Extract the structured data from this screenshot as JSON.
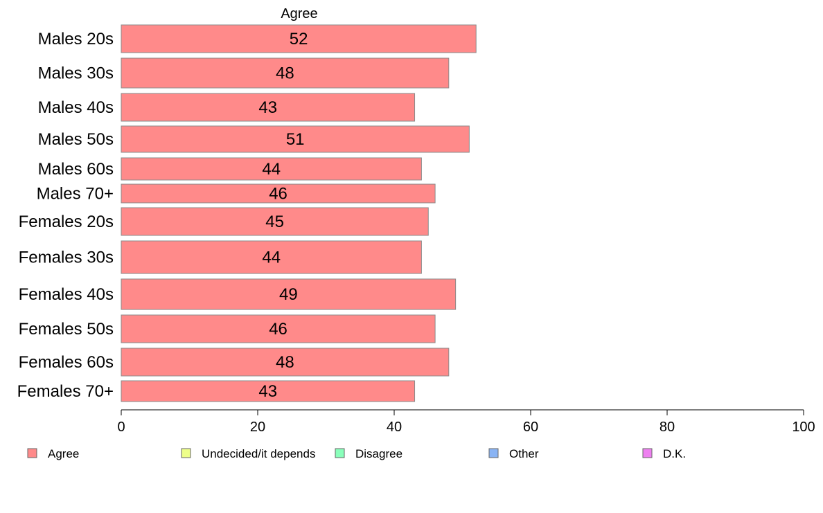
{
  "chart_data": {
    "type": "bar",
    "orientation": "horizontal",
    "title": "Agree",
    "categories": [
      "Males 20s",
      "Males 30s",
      "Males 40s",
      "Males 50s",
      "Males 60s",
      "Males 70+",
      "Females 20s",
      "Females 30s",
      "Females 40s",
      "Females 50s",
      "Females 60s",
      "Females 70+"
    ],
    "series": [
      {
        "name": "Agree",
        "values": [
          52,
          48,
          43,
          51,
          44,
          46,
          45,
          44,
          49,
          46,
          48,
          43
        ]
      }
    ],
    "xlim": [
      0,
      100
    ],
    "xticks": [
      0,
      20,
      40,
      60,
      80,
      100
    ],
    "grid": false,
    "legend": {
      "placement": "bottom",
      "entries": [
        {
          "label": "Agree",
          "color": "#ff8a8a"
        },
        {
          "label": "Undecided/it depends",
          "color": "#eeff8a"
        },
        {
          "label": "Disagree",
          "color": "#8affbb"
        },
        {
          "label": "Other",
          "color": "#8ab4f4"
        },
        {
          "label": "D.K.",
          "color": "#ee80f0"
        }
      ]
    }
  }
}
